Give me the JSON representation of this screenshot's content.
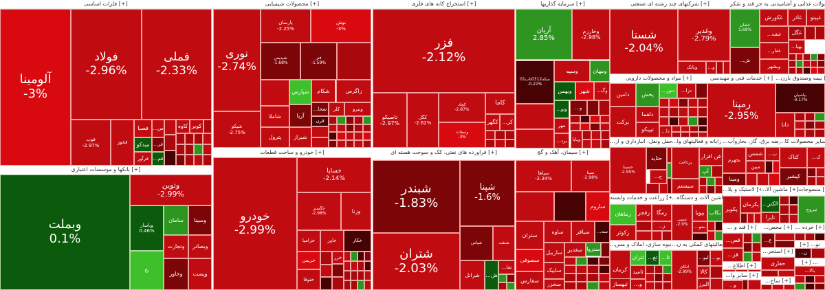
{
  "sectors": [
    {
      "title": "فلزات اساسی [+]",
      "tiles": [
        {
          "symbol": "آلومینا",
          "change": "-3%"
        },
        {
          "symbol": "فولاد",
          "change": "-2.96%"
        },
        {
          "symbol": "فملی",
          "change": "-2.33%"
        },
        {
          "symbol": "فوب",
          "change": "-2.97%"
        },
        {
          "symbol": "فخوز"
        },
        {
          "symbol": "فصبا"
        },
        {
          "symbol": "میدکو"
        },
        {
          "symbol": "فرآور"
        },
        {
          "symbol": "...س"
        },
        {
          "symbol": "...فر"
        },
        {
          "symbol": "...قم"
        },
        {
          "symbol": "کاوه"
        },
        {
          "symbol": "کویر"
        }
      ]
    },
    {
      "title": "بانکها و موسسات اعتباری [+]",
      "tiles": [
        {
          "symbol": "وبملت",
          "change": "0.1%"
        },
        {
          "symbol": "وتوین",
          "change": "-2.99%"
        },
        {
          "symbol": "وپاسار",
          "change": "0.46%"
        },
        {
          "symbol": "بخ"
        },
        {
          "symbol": "سامان"
        },
        {
          "symbol": "وسینا"
        },
        {
          "symbol": "وتجارت"
        },
        {
          "symbol": "وبصادر"
        },
        {
          "symbol": "وخاور"
        },
        {
          "symbol": "وپست"
        }
      ]
    },
    {
      "title": "محصولات شیمیایی [+]",
      "tiles": [
        {
          "symbol": "نوری",
          "change": "-2.74%"
        },
        {
          "symbol": "شیکو",
          "change": "-2.75%"
        },
        {
          "symbol": "پارسان",
          "change": "-2.25%"
        },
        {
          "symbol": "نوش",
          "change": "-3%"
        },
        {
          "symbol": "شپدیس",
          "change": "-1.68%"
        },
        {
          "symbol": "فنر",
          "change": "-1.59%"
        },
        {
          "symbol": "شپارس"
        },
        {
          "symbol": "شکام"
        },
        {
          "symbol": "زاگرس"
        },
        {
          "symbol": "شاملا"
        },
        {
          "symbol": "آریا"
        },
        {
          "symbol": "پترول"
        },
        {
          "symbol": "شیراز"
        },
        {
          "symbol": "...شخا"
        },
        {
          "symbol": "کلر"
        },
        {
          "symbol": "ونیرو"
        },
        {
          "symbol": "قرن"
        }
      ]
    },
    {
      "title": "خودرو و ساخت قطعات [+]",
      "tiles": [
        {
          "symbol": "خودرو",
          "change": "-2.99%"
        },
        {
          "symbol": "خساپا",
          "change": "-2.14%"
        },
        {
          "symbol": "خگستر",
          "change": "-2.98%"
        },
        {
          "symbol": "وزنا"
        },
        {
          "symbol": "خزامیا"
        },
        {
          "symbol": "خاور"
        },
        {
          "symbol": "خکار"
        },
        {
          "symbol": "خریمن"
        },
        {
          "symbol": "ختوقا"
        },
        {
          "symbol": "خزر"
        }
      ]
    },
    {
      "title": "استخراج کانه های فلزی [+]",
      "tiles": [
        {
          "symbol": "فزر",
          "change": "-2.12%"
        },
        {
          "symbol": "تاصیکو",
          "change": "-2.97%"
        },
        {
          "symbol": "کگل",
          "change": "-2.62%"
        },
        {
          "symbol": "کچاد",
          "change": "-2.87%"
        },
        {
          "symbol": "وسفات",
          "change": "-3%"
        },
        {
          "symbol": "کاما"
        },
        {
          "symbol": "کگهر"
        },
        {
          "symbol": "...کر"
        }
      ]
    },
    {
      "title": "فراورده های نفتی، کک و سوخت هسته ای [+]",
      "tiles": [
        {
          "symbol": "شبندر",
          "change": "-1.83%"
        },
        {
          "symbol": "شپنا",
          "change": "-1.6%"
        },
        {
          "symbol": "شتران",
          "change": "-2.03%"
        },
        {
          "symbol": "شپاس"
        },
        {
          "symbol": "شنفت"
        },
        {
          "symbol": "شرانل"
        },
        {
          "symbol": "...ش"
        },
        {
          "symbol": "...شا"
        }
      ]
    },
    {
      "title": "سرمایه گذاریها [+]",
      "tiles": [
        {
          "symbol": "آریان",
          "change": "2.85%"
        },
        {
          "symbol": "وخارزم",
          "change": "-2.98%"
        },
        {
          "symbol": "سکه0312تاب01",
          "change": "-0.21%"
        },
        {
          "symbol": "وسپه"
        },
        {
          "symbol": "ومهان"
        },
        {
          "symbol": "وبهمن"
        },
        {
          "symbol": "شهر"
        },
        {
          "symbol": "...وگ"
        },
        {
          "symbol": "...وتو"
        },
        {
          "symbol": "...و"
        },
        {
          "symbol": "مهر"
        },
        {
          "symbol": "...یرد"
        },
        {
          "symbol": "ویایا"
        }
      ]
    },
    {
      "title": "سیمان، آهک و گچ [+]",
      "tiles": [
        {
          "symbol": "سپاها",
          "change": "-2.34%"
        },
        {
          "symbol": "سینا",
          "change": "-2.98%"
        },
        {
          "symbol": "ساروم"
        },
        {
          "symbol": "ستران"
        },
        {
          "symbol": "ساوه"
        },
        {
          "symbol": "سباقر"
        },
        {
          "symbol": "...سه"
        },
        {
          "symbol": "سصوفی"
        },
        {
          "symbol": "ساربیل"
        },
        {
          "symbol": "سغدیر"
        },
        {
          "symbol": "سنزوا"
        },
        {
          "symbol": "سابیک"
        },
        {
          "symbol": "سفارس"
        },
        {
          "symbol": "سخزر"
        }
      ]
    },
    {
      "title": "شرکتهای چند رشته ای صنعتی [+]",
      "tiles": [
        {
          "symbol": "شستا",
          "change": "-2.04%"
        },
        {
          "symbol": "وغدیر",
          "change": "-2.79%"
        },
        {
          "symbol": "وبانک"
        },
        {
          "symbol": "...و"
        }
      ]
    },
    {
      "title": "محصولات غذایی و آشامیدنی به جز قند و شکر [+]",
      "tiles": [
        {
          "symbol": "غشان",
          "change": "1.69%"
        },
        {
          "symbol": "...ش"
        },
        {
          "symbol": "غکورش"
        },
        {
          "symbol": "غاذر"
        },
        {
          "symbol": "غپینو"
        },
        {
          "symbol": "...غشه"
        },
        {
          "symbol": "غگل"
        },
        {
          "symbol": "...غفار"
        },
        {
          "symbol": "...بهپا"
        },
        {
          "symbol": "وبشهر"
        }
      ]
    },
    {
      "title": "مواد و محصولات دارویی [+]",
      "tiles": [
        {
          "symbol": "دامین"
        },
        {
          "symbol": "پخش"
        },
        {
          "symbol": "...دتوز"
        },
        {
          "symbol": "...دزا"
        },
        {
          "symbol": "برکت"
        },
        {
          "symbol": "دلقما"
        },
        {
          "symbol": "تیپیکو"
        },
        {
          "symbol": "...دا"
        }
      ]
    },
    {
      "title": "خدمات فنی و مهندسی [+]",
      "tiles": [
        {
          "symbol": "رمپنا",
          "change": "-2.95%"
        }
      ]
    },
    {
      "title": "...بیمه وصندوق بازن [+]",
      "tiles": [
        {
          "symbol": "بپاسیان",
          "change": "-0.17%"
        },
        {
          "symbol": "دانا"
        }
      ]
    },
    {
      "title": "...حمل ونقل، انبارداری و ار [+]",
      "tiles": [
        {
          "symbol": "حسینا",
          "change": "-2.95%"
        },
        {
          "symbol": "حتاید"
        },
        {
          "symbol": "...ح"
        }
      ]
    },
    {
      "title": "...رایانه و فعالیتهای وا [+]",
      "tiles": [
        {
          "symbol": "پرداخت"
        },
        {
          "symbol": "فن افزار"
        },
        {
          "symbol": "آپ"
        },
        {
          "symbol": "سیستم"
        }
      ]
    },
    {
      "title": "...عرضه برق، گاز، بخاروآب [+]",
      "tiles": [
        {
          "symbol": "بجهرم"
        },
        {
          "symbol": "شمس"
        },
        {
          "symbol": "...ب"
        },
        {
          "symbol": "ومینا"
        },
        {
          "symbol": "مبین"
        }
      ]
    },
    {
      "title": "...سایر محصولات کا [+]",
      "tiles": [
        {
          "symbol": "کتاک"
        },
        {
          "symbol": "...ک"
        },
        {
          "symbol": "کپشیر"
        }
      ]
    },
    {
      "title": "زراعت و خدمات وابسته [+]",
      "tiles": [
        {
          "symbol": "زماهان"
        },
        {
          "symbol": "زفجر"
        },
        {
          "symbol": "زمگا"
        },
        {
          "symbol": "زکوثر"
        },
        {
          "symbol": "...ز"
        }
      ]
    },
    {
      "title": "...ماشین آلات و دستگاه [+]",
      "tiles": [
        {
          "symbol": "تپمپی",
          "change": "-2.9%"
        },
        {
          "symbol": "بپویا"
        },
        {
          "symbol": "بکاب"
        },
        {
          "symbol": "...بمو"
        }
      ]
    },
    {
      "title": "...لاستیک و پلا [+]",
      "tiles": [
        {
          "symbol": "پکویر"
        },
        {
          "symbol": "پکرمان"
        }
      ]
    },
    {
      "title": "...ماشین آلا [+]",
      "tiles": [
        {
          "symbol": "...الکتر"
        },
        {
          "symbol": "تایرا"
        }
      ]
    },
    {
      "title": "منسوجات [+]",
      "tiles": [
        {
          "symbol": "نبروج"
        }
      ]
    },
    {
      "title": "...انبوه سازی، املاک و مس [+]",
      "tiles": [
        {
          "symbol": "کرمان"
        },
        {
          "symbol": "ثتران"
        },
        {
          "symbol": "...ثغ"
        },
        {
          "symbol": "...ثا"
        },
        {
          "symbol": "ثامید"
        },
        {
          "symbol": "ثبهساز"
        },
        {
          "symbol": "...و"
        }
      ]
    },
    {
      "title": "...فعالیتهای کمکی به ن [+]",
      "tiles": [
        {
          "symbol": "اتکای",
          "change": "-2.99%"
        },
        {
          "symbol": "...لبو"
        },
        {
          "symbol": "...بو"
        },
        {
          "symbol": "کالا"
        },
        {
          "symbol": "البرز"
        }
      ]
    },
    {
      "title": "... قند و [+]",
      "tiles": [
        {
          "symbol": "...قص"
        },
        {
          "symbol": "...قز"
        }
      ]
    },
    {
      "title": "...محص [+]",
      "tiles": [
        {
          "symbol": "...ع"
        }
      ]
    },
    {
      "title": "... خرده [+]",
      "tiles": []
    },
    {
      "title": "...اطلاع [+]",
      "tiles": []
    },
    {
      "title": "...استخر [+]",
      "tiles": [
        {
          "symbol": "حفاری"
        }
      ]
    },
    {
      "title": "...سایر وا [+]",
      "tiles": [
        {
          "symbol": "...و"
        }
      ]
    },
    {
      "title": "...ساخ [+]",
      "tiles": []
    },
    {
      "title": "[+] ...نو",
      "tiles": [
        {
          "symbol": "...ن"
        }
      ]
    },
    {
      "title": "[+] ...",
      "tiles": [
        {
          "symbol": "...بالا"
        }
      ]
    }
  ]
}
